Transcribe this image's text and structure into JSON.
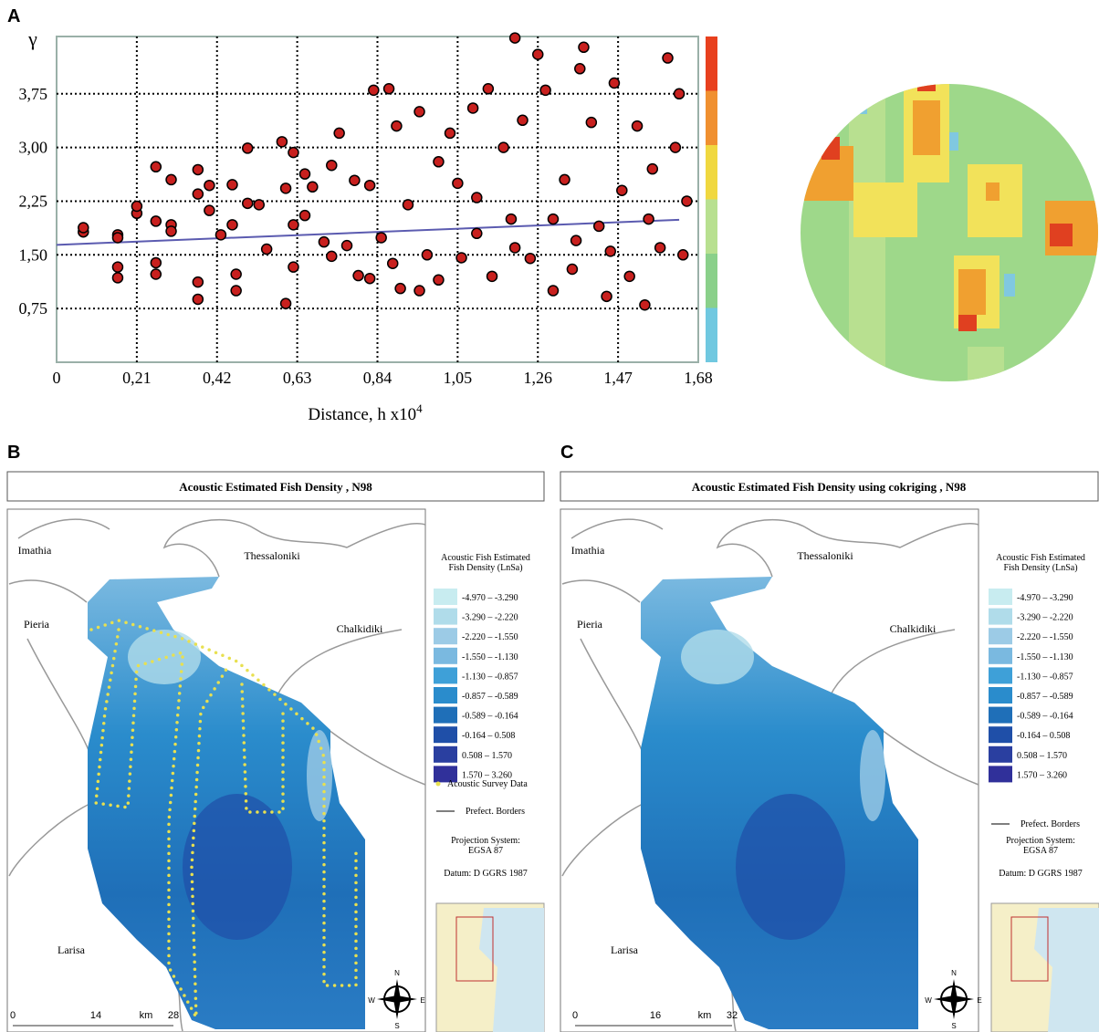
{
  "panel_labels": [
    "A",
    "B",
    "C"
  ],
  "chart_data": {
    "type": "scatter",
    "y_label": "γ",
    "x_label": "Distance, h x10",
    "x_label_sup": "4",
    "xlim": [
      0,
      1.68
    ],
    "ylim": [
      0,
      4.55
    ],
    "xticks": [
      0,
      {
        "value": 0.21,
        "label": "0,21"
      },
      {
        "value": 0.42,
        "label": "0,42"
      },
      {
        "value": 0.63,
        "label": "0,63"
      },
      {
        "value": 0.84,
        "label": "0,84"
      },
      {
        "value": 1.05,
        "label": "1,05"
      },
      {
        "value": 1.26,
        "label": "1,26"
      },
      {
        "value": 1.47,
        "label": "1,47"
      },
      {
        "value": 1.68,
        "label": "1,68"
      }
    ],
    "yticks": [
      {
        "value": 0.75,
        "label": "0,75"
      },
      {
        "value": 1.5,
        "label": "1,50"
      },
      {
        "value": 2.25,
        "label": "2,25"
      },
      {
        "value": 3,
        "label": "3,00"
      },
      {
        "value": 3.75,
        "label": "3,75"
      }
    ],
    "grid": true,
    "color": "#c8201e",
    "x": [
      0.07,
      0.07,
      0.16,
      0.16,
      0.16,
      0.16,
      0.21,
      0.21,
      0.26,
      0.26,
      0.26,
      0.26,
      0.3,
      0.3,
      0.3,
      0.37,
      0.37,
      0.37,
      0.37,
      0.4,
      0.4,
      0.43,
      0.46,
      0.46,
      0.47,
      0.47,
      0.5,
      0.5,
      0.53,
      0.55,
      0.59,
      0.6,
      0.6,
      0.62,
      0.62,
      0.62,
      0.65,
      0.65,
      0.67,
      0.7,
      0.72,
      0.72,
      0.74,
      0.76,
      0.78,
      0.79,
      0.82,
      0.82,
      0.83,
      0.85,
      0.87,
      0.88,
      0.89,
      0.9,
      0.92,
      0.95,
      0.97,
      1.0,
      1.0,
      1.03,
      1.05,
      1.06,
      1.09,
      1.1,
      1.13,
      1.14,
      1.17,
      1.19,
      1.2,
      1.22,
      1.24,
      1.26,
      1.28,
      1.3,
      1.33,
      1.36,
      1.37,
      1.38,
      1.4,
      1.42,
      1.44,
      1.46,
      1.48,
      1.5,
      1.52,
      1.54,
      1.56,
      1.58,
      1.6,
      1.62,
      1.63,
      1.64,
      1.65,
      1.3,
      1.2,
      1.1,
      0.95,
      1.35,
      1.45,
      1.55
    ],
    "values": [
      1.82,
      1.88,
      1.78,
      1.74,
      1.33,
      1.18,
      2.08,
      2.18,
      2.73,
      1.97,
      1.39,
      1.23,
      2.55,
      1.92,
      1.83,
      2.69,
      2.35,
      1.12,
      0.88,
      2.47,
      2.12,
      1.78,
      2.48,
      1.92,
      1.23,
      1.0,
      2.99,
      2.22,
      2.2,
      1.58,
      3.08,
      2.43,
      0.82,
      2.93,
      1.92,
      1.33,
      2.63,
      2.05,
      2.45,
      1.68,
      2.75,
      1.48,
      3.2,
      1.63,
      2.54,
      1.21,
      1.17,
      2.47,
      3.8,
      1.74,
      3.82,
      1.38,
      3.3,
      1.03,
      2.2,
      3.5,
      1.5,
      2.8,
      1.15,
      3.2,
      2.5,
      1.46,
      3.55,
      1.8,
      3.82,
      1.2,
      3.0,
      2.0,
      4.53,
      3.38,
      1.45,
      4.3,
      3.8,
      1.0,
      2.55,
      1.7,
      4.1,
      4.4,
      3.35,
      1.9,
      0.92,
      3.9,
      2.4,
      1.2,
      3.3,
      0.8,
      2.7,
      1.6,
      4.25,
      3.0,
      3.75,
      1.5,
      2.25,
      2.0,
      1.6,
      2.3,
      1.0,
      1.3,
      1.55,
      2.0
    ],
    "fit": {
      "x": [
        0,
        1.63
      ],
      "values": [
        1.64,
        1.99
      ],
      "color": "#5b5bb0"
    },
    "colorbar": [
      "#e8401e",
      "#f09030",
      "#f0d840",
      "#b8e090",
      "#8ad08a",
      "#70c8e0"
    ]
  },
  "maps": [
    {
      "title": "Acoustic Estimated Fish Density , N98",
      "places": [
        "Imathia",
        "Thessaloniki",
        "Pieria",
        "Chalkidiki",
        "Larisa"
      ],
      "legend_title": [
        "Acoustic Fish Estimated",
        "Fish Density (LnSa)"
      ],
      "classes": [
        {
          "label": "-4.970 – -3.290",
          "color": "#c8ecf0"
        },
        {
          "label": "-3.290 – -2.220",
          "color": "#b0dcea"
        },
        {
          "label": "-2.220 – -1.550",
          "color": "#9ccbe6"
        },
        {
          "label": "-1.550 – -1.130",
          "color": "#7ab9e0"
        },
        {
          "label": "-1.130 – -0.857",
          "color": "#3ea0d8"
        },
        {
          "label": "-0.857 – -0.589",
          "color": "#2a8ccc"
        },
        {
          "label": "-0.589 – -0.164",
          "color": "#1f6fb8"
        },
        {
          "label": "-0.164 – 0.508",
          "color": "#1f4fa8"
        },
        {
          "label": "0.508 – 1.570",
          "color": "#2a3fa0"
        },
        {
          "label": "1.570 – 3.260",
          "color": "#30309a"
        }
      ],
      "survey_label": "Acoustic Survey Data",
      "border_label": "Prefect. Borders",
      "projection": [
        "Projection System:",
        "EGSA 87"
      ],
      "datum": "Datum: D GGRS 1987",
      "scale": [
        "0",
        "14",
        "km",
        "28"
      ],
      "compass": [
        "N",
        "S",
        "W",
        "E"
      ]
    },
    {
      "title": "Acoustic Estimated Fish Density using cokriging , N98",
      "places": [
        "Imathia",
        "Thessaloniki",
        "Pieria",
        "Chalkidiki",
        "Larisa"
      ],
      "legend_title": [
        "Acoustic Fish Estimated",
        "Fish Density (LnSa)"
      ],
      "classes": [
        {
          "label": "-4.970 – -3.290",
          "color": "#c8ecf0"
        },
        {
          "label": "-3.290 – -2.220",
          "color": "#b0dcea"
        },
        {
          "label": "-2.220 – -1.550",
          "color": "#9ccbe6"
        },
        {
          "label": "-1.550 – -1.130",
          "color": "#7ab9e0"
        },
        {
          "label": "-1.130 – -0.857",
          "color": "#3ea0d8"
        },
        {
          "label": "-0.857 – -0.589",
          "color": "#2a8ccc"
        },
        {
          "label": "-0.589 – -0.164",
          "color": "#1f6fb8"
        },
        {
          "label": "-0.164 – 0.508",
          "color": "#1f4fa8"
        },
        {
          "label": "0.508 – 1.570",
          "color": "#2a3fa0"
        },
        {
          "label": "1.570 – 3.260",
          "color": "#30309a"
        }
      ],
      "border_label": "Prefect. Borders",
      "projection": [
        "Projection System:",
        "EGSA 87"
      ],
      "datum": "Datum: D GGRS 1987",
      "scale": [
        "0",
        "16",
        "km",
        "32"
      ],
      "compass": [
        "N",
        "S",
        "W",
        "E"
      ]
    }
  ]
}
